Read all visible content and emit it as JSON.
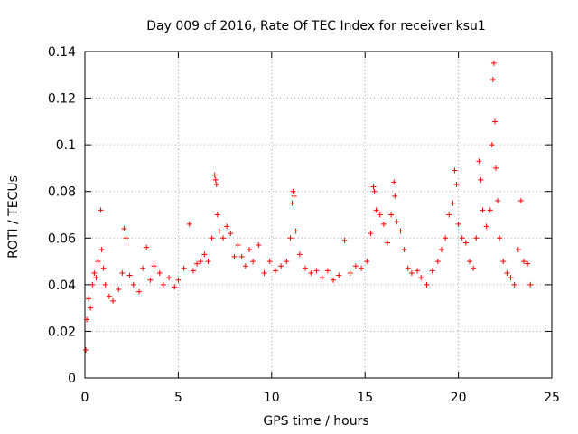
{
  "chart_data": {
    "type": "scatter",
    "title": "Day 009 of 2016, Rate Of TEC Index for receiver ksu1",
    "xlabel": "GPS time / hours",
    "ylabel": "ROTI / TECUs",
    "xlim": [
      0,
      25
    ],
    "ylim": [
      0,
      0.14
    ],
    "xticks": [
      "0",
      "5",
      "10",
      "15",
      "20",
      "25"
    ],
    "yticks": [
      "0",
      "0.02",
      "0.04",
      "0.06",
      "0.08",
      "0.1",
      "0.12",
      "0.14"
    ],
    "grid": true,
    "marker": "+",
    "color": "#ff0000",
    "series": [
      {
        "name": "ROTI",
        "points": [
          [
            0.05,
            0.012
          ],
          [
            0.1,
            0.025
          ],
          [
            0.2,
            0.034
          ],
          [
            0.3,
            0.03
          ],
          [
            0.4,
            0.04
          ],
          [
            0.5,
            0.045
          ],
          [
            0.6,
            0.043
          ],
          [
            0.7,
            0.05
          ],
          [
            0.85,
            0.072
          ],
          [
            0.9,
            0.055
          ],
          [
            1.0,
            0.047
          ],
          [
            1.1,
            0.04
          ],
          [
            1.3,
            0.035
          ],
          [
            1.5,
            0.033
          ],
          [
            1.8,
            0.038
          ],
          [
            2.0,
            0.045
          ],
          [
            2.1,
            0.064
          ],
          [
            2.2,
            0.06
          ],
          [
            2.4,
            0.044
          ],
          [
            2.6,
            0.04
          ],
          [
            2.9,
            0.037
          ],
          [
            3.1,
            0.047
          ],
          [
            3.3,
            0.056
          ],
          [
            3.5,
            0.042
          ],
          [
            3.7,
            0.048
          ],
          [
            4.0,
            0.045
          ],
          [
            4.2,
            0.04
          ],
          [
            4.5,
            0.043
          ],
          [
            4.8,
            0.039
          ],
          [
            5.0,
            0.042
          ],
          [
            5.3,
            0.047
          ],
          [
            5.6,
            0.066
          ],
          [
            5.8,
            0.046
          ],
          [
            6.0,
            0.049
          ],
          [
            6.2,
            0.05
          ],
          [
            6.4,
            0.053
          ],
          [
            6.6,
            0.05
          ],
          [
            6.8,
            0.06
          ],
          [
            6.95,
            0.087
          ],
          [
            7.0,
            0.085
          ],
          [
            7.05,
            0.083
          ],
          [
            7.1,
            0.07
          ],
          [
            7.2,
            0.063
          ],
          [
            7.4,
            0.06
          ],
          [
            7.6,
            0.065
          ],
          [
            7.8,
            0.062
          ],
          [
            8.0,
            0.052
          ],
          [
            8.2,
            0.057
          ],
          [
            8.4,
            0.052
          ],
          [
            8.6,
            0.048
          ],
          [
            8.8,
            0.055
          ],
          [
            9.0,
            0.05
          ],
          [
            9.3,
            0.057
          ],
          [
            9.6,
            0.045
          ],
          [
            9.9,
            0.05
          ],
          [
            10.2,
            0.046
          ],
          [
            10.5,
            0.048
          ],
          [
            10.8,
            0.05
          ],
          [
            11.0,
            0.06
          ],
          [
            11.1,
            0.075
          ],
          [
            11.15,
            0.08
          ],
          [
            11.2,
            0.078
          ],
          [
            11.3,
            0.063
          ],
          [
            11.5,
            0.053
          ],
          [
            11.8,
            0.047
          ],
          [
            12.1,
            0.045
          ],
          [
            12.4,
            0.046
          ],
          [
            12.7,
            0.043
          ],
          [
            13.0,
            0.046
          ],
          [
            13.3,
            0.042
          ],
          [
            13.6,
            0.044
          ],
          [
            13.9,
            0.059
          ],
          [
            14.2,
            0.045
          ],
          [
            14.5,
            0.048
          ],
          [
            14.8,
            0.047
          ],
          [
            15.1,
            0.05
          ],
          [
            15.3,
            0.062
          ],
          [
            15.45,
            0.082
          ],
          [
            15.5,
            0.08
          ],
          [
            15.6,
            0.072
          ],
          [
            15.8,
            0.07
          ],
          [
            16.0,
            0.066
          ],
          [
            16.2,
            0.058
          ],
          [
            16.4,
            0.07
          ],
          [
            16.55,
            0.084
          ],
          [
            16.6,
            0.078
          ],
          [
            16.7,
            0.067
          ],
          [
            16.9,
            0.063
          ],
          [
            17.1,
            0.055
          ],
          [
            17.3,
            0.047
          ],
          [
            17.5,
            0.045
          ],
          [
            17.8,
            0.046
          ],
          [
            18.0,
            0.043
          ],
          [
            18.3,
            0.04
          ],
          [
            18.6,
            0.046
          ],
          [
            18.9,
            0.05
          ],
          [
            19.1,
            0.055
          ],
          [
            19.3,
            0.06
          ],
          [
            19.5,
            0.07
          ],
          [
            19.7,
            0.075
          ],
          [
            19.8,
            0.089
          ],
          [
            19.9,
            0.083
          ],
          [
            20.0,
            0.066
          ],
          [
            20.2,
            0.06
          ],
          [
            20.4,
            0.058
          ],
          [
            20.6,
            0.05
          ],
          [
            20.8,
            0.047
          ],
          [
            20.95,
            0.06
          ],
          [
            21.1,
            0.093
          ],
          [
            21.2,
            0.085
          ],
          [
            21.3,
            0.072
          ],
          [
            21.5,
            0.065
          ],
          [
            21.7,
            0.072
          ],
          [
            21.8,
            0.1
          ],
          [
            21.85,
            0.128
          ],
          [
            21.9,
            0.135
          ],
          [
            21.95,
            0.11
          ],
          [
            22.0,
            0.09
          ],
          [
            22.1,
            0.076
          ],
          [
            22.2,
            0.06
          ],
          [
            22.4,
            0.05
          ],
          [
            22.6,
            0.045
          ],
          [
            22.8,
            0.043
          ],
          [
            23.0,
            0.04
          ],
          [
            23.2,
            0.055
          ],
          [
            23.35,
            0.076
          ],
          [
            23.5,
            0.05
          ],
          [
            23.7,
            0.049
          ],
          [
            23.85,
            0.04
          ]
        ]
      }
    ]
  }
}
